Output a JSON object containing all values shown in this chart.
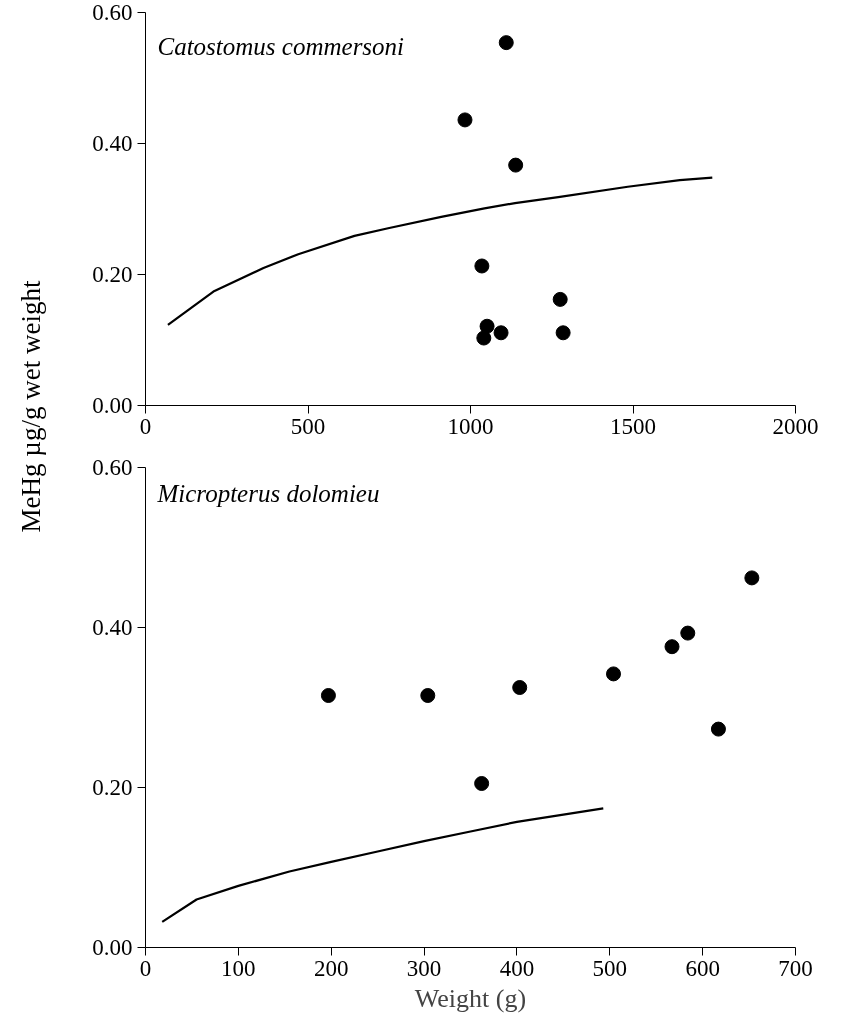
{
  "chart_data": [
    {
      "type": "scatter",
      "ylabel": "MeHg µg/g wet weight",
      "annotations": [
        "Catostomus commersoni"
      ],
      "xlim": [
        0,
        2000
      ],
      "xticks": [
        0,
        500,
        1000,
        1500,
        2000
      ],
      "ylim": [
        0,
        0.6
      ],
      "yticks": [
        {
          "value": 0,
          "label": "0.00"
        },
        {
          "value": 0.2,
          "label": "0.20"
        },
        {
          "value": 0.4,
          "label": "0.40"
        },
        {
          "value": 0.6,
          "label": "0.60"
        }
      ],
      "grid": false,
      "series": [
        {
          "marker": "circle",
          "color": "#000000",
          "x": [
            1110,
            983,
            1139,
            1035,
            1276,
            1051,
            1094,
            1041,
            1285
          ],
          "values": [
            0.554,
            0.436,
            0.367,
            0.213,
            0.162,
            0.121,
            0.111,
            0.103,
            0.111
          ]
        },
        {
          "type": "line",
          "color": "#000000",
          "line_style": "solid",
          "x": [
            69,
            209,
            363,
            470,
            643,
            750,
            910,
            1043,
            1137,
            1270,
            1484,
            1644,
            1744
          ],
          "values": [
            0.123,
            0.174,
            0.21,
            0.231,
            0.259,
            0.271,
            0.288,
            0.301,
            0.309,
            0.318,
            0.334,
            0.344,
            0.348
          ]
        }
      ]
    },
    {
      "type": "scatter",
      "xlabel": "Weight (g)",
      "annotations": [
        "Micropterus dolomieu"
      ],
      "xlim": [
        0,
        700
      ],
      "xticks": [
        0,
        100,
        200,
        300,
        400,
        500,
        600,
        700
      ],
      "ylim": [
        0,
        0.6
      ],
      "yticks": [
        {
          "value": 0,
          "label": "0.00"
        },
        {
          "value": 0.2,
          "label": "0.20"
        },
        {
          "value": 0.4,
          "label": "0.40"
        },
        {
          "value": 0.6,
          "label": "0.60"
        }
      ],
      "grid": false,
      "series": [
        {
          "marker": "circle",
          "color": "#000000",
          "x": [
            197,
            304,
            362,
            403,
            504,
            567,
            584,
            617,
            653
          ],
          "values": [
            0.315,
            0.315,
            0.205,
            0.325,
            0.342,
            0.376,
            0.393,
            0.273,
            0.462
          ]
        },
        {
          "type": "line",
          "color": "#000000",
          "line_style": "solid",
          "x": [
            18,
            55,
            100,
            155,
            200,
            250,
            300,
            350,
            400,
            450,
            493
          ],
          "values": [
            0.032,
            0.06,
            0.077,
            0.095,
            0.107,
            0.12,
            0.133,
            0.145,
            0.157,
            0.166,
            0.174
          ]
        }
      ]
    }
  ]
}
